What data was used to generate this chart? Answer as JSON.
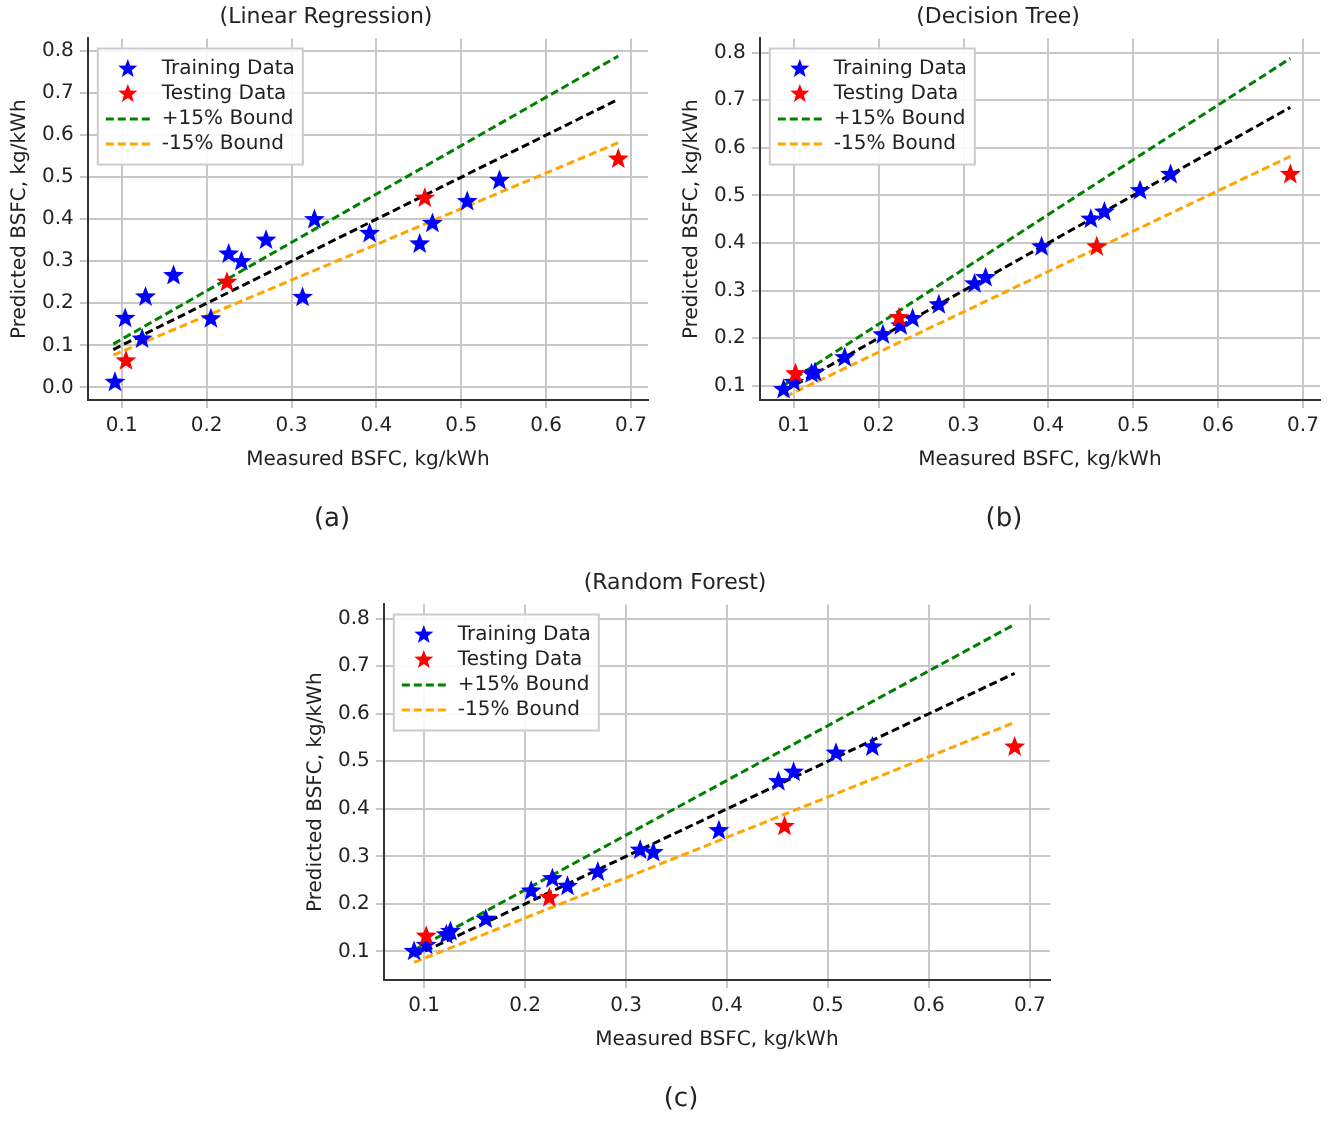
{
  "chart_data": [
    {
      "type": "scatter",
      "title": "(Linear Regression)",
      "xlabel": "Measured BSFC, kg/kWh",
      "ylabel": "Predicted BSFC, kg/kWh",
      "annotations": [
        "(a)"
      ],
      "xlim": [
        0.06,
        0.72
      ],
      "ylim": [
        -0.03,
        0.83
      ],
      "xticks": [
        0.1,
        0.2,
        0.3,
        0.4,
        0.5,
        0.6,
        0.7
      ],
      "yticks": [
        {
          "value": 0,
          "label": "0.0"
        },
        0.1,
        0.2,
        0.3,
        0.4,
        0.5,
        0.6,
        0.7,
        0.8
      ],
      "grid": true,
      "legend": "top left",
      "series": [
        {
          "type": "scatter",
          "name": "Training Data",
          "color": "#0000ff",
          "marker": "star",
          "x": [
            0.092,
            0.104,
            0.124,
            0.128,
            0.161,
            0.205,
            0.226,
            0.241,
            0.27,
            0.313,
            0.327,
            0.392,
            0.451,
            0.466,
            0.507,
            0.545
          ],
          "values": [
            0.012,
            0.164,
            0.115,
            0.215,
            0.266,
            0.163,
            0.317,
            0.299,
            0.35,
            0.214,
            0.399,
            0.366,
            0.341,
            0.39,
            0.442,
            0.492
          ]
        },
        {
          "type": "scatter",
          "name": "Testing Data",
          "color": "#ff0000",
          "marker": "star",
          "x": [
            0.105,
            0.224,
            0.457,
            0.685
          ],
          "values": [
            0.063,
            0.25,
            0.45,
            0.543
          ]
        },
        {
          "type": "line",
          "name": "+15% Bound",
          "color": "#008000",
          "marker": "none",
          "line_style": "dashed",
          "x": [
            0.09,
            0.685
          ],
          "values": [
            0.103,
            0.788
          ]
        },
        {
          "type": "line",
          "name": "-15% Bound",
          "color": "#ffa500",
          "marker": "none",
          "line_style": "dashed",
          "x": [
            0.09,
            0.685
          ],
          "values": [
            0.077,
            0.582
          ]
        },
        {
          "type": "line",
          "color": "#000000",
          "marker": "none",
          "line_style": "dashed",
          "x": [
            0.09,
            0.685
          ],
          "values": [
            0.09,
            0.685
          ]
        }
      ]
    },
    {
      "type": "scatter",
      "title": "(Decision Tree)",
      "xlabel": "Measured BSFC, kg/kWh",
      "ylabel": "Predicted BSFC, kg/kWh",
      "annotations": [
        "(b)"
      ],
      "xlim": [
        0.06,
        0.72
      ],
      "ylim": [
        0.07,
        0.83
      ],
      "xticks": [
        0.1,
        0.2,
        0.3,
        0.4,
        0.5,
        0.6,
        0.7
      ],
      "yticks": [
        0.1,
        0.2,
        0.3,
        0.4,
        0.5,
        0.6,
        0.7,
        0.8
      ],
      "grid": true,
      "legend": "top left",
      "series": [
        {
          "type": "scatter",
          "name": "Training Data",
          "color": "#0000ff",
          "marker": "star",
          "x": [
            0.088,
            0.1,
            0.121,
            0.125,
            0.16,
            0.205,
            0.226,
            0.24,
            0.271,
            0.313,
            0.326,
            0.392,
            0.45,
            0.466,
            0.508,
            0.544
          ],
          "values": [
            0.092,
            0.107,
            0.125,
            0.128,
            0.159,
            0.207,
            0.226,
            0.241,
            0.27,
            0.314,
            0.327,
            0.392,
            0.45,
            0.465,
            0.51,
            0.544
          ]
        },
        {
          "type": "scatter",
          "name": "Testing Data",
          "color": "#ff0000",
          "marker": "star",
          "x": [
            0.102,
            0.224,
            0.457,
            0.685
          ],
          "values": [
            0.125,
            0.243,
            0.392,
            0.544
          ]
        },
        {
          "type": "line",
          "name": "+15% Bound",
          "color": "#008000",
          "marker": "none",
          "line_style": "dashed",
          "x": [
            0.09,
            0.685
          ],
          "values": [
            0.103,
            0.788
          ]
        },
        {
          "type": "line",
          "name": "-15% Bound",
          "color": "#ffa500",
          "marker": "none",
          "line_style": "dashed",
          "x": [
            0.09,
            0.685
          ],
          "values": [
            0.077,
            0.582
          ]
        },
        {
          "type": "line",
          "color": "#000000",
          "marker": "none",
          "line_style": "dashed",
          "x": [
            0.09,
            0.685
          ],
          "values": [
            0.09,
            0.685
          ]
        }
      ]
    },
    {
      "type": "scatter",
      "title": "(Random Forest)",
      "xlabel": "Measured BSFC, kg/kWh",
      "ylabel": "Predicted BSFC, kg/kWh",
      "annotations": [
        "(c)"
      ],
      "xlim": [
        0.06,
        0.72
      ],
      "ylim": [
        0.04,
        0.83
      ],
      "xticks": [
        0.1,
        0.2,
        0.3,
        0.4,
        0.5,
        0.6,
        0.7
      ],
      "yticks": [
        0.1,
        0.2,
        0.3,
        0.4,
        0.5,
        0.6,
        0.7,
        0.8
      ],
      "grid": true,
      "legend": "top left",
      "series": [
        {
          "type": "scatter",
          "name": "Training Data",
          "color": "#0000ff",
          "marker": "star",
          "x": [
            0.09,
            0.102,
            0.122,
            0.126,
            0.161,
            0.206,
            0.227,
            0.242,
            0.272,
            0.314,
            0.327,
            0.392,
            0.451,
            0.466,
            0.508,
            0.544
          ],
          "values": [
            0.1,
            0.113,
            0.135,
            0.142,
            0.168,
            0.227,
            0.253,
            0.237,
            0.267,
            0.313,
            0.308,
            0.354,
            0.457,
            0.477,
            0.517,
            0.53
          ]
        },
        {
          "type": "scatter",
          "name": "Testing Data",
          "color": "#ff0000",
          "marker": "star",
          "x": [
            0.102,
            0.224,
            0.457,
            0.685
          ],
          "values": [
            0.132,
            0.213,
            0.363,
            0.53
          ]
        },
        {
          "type": "line",
          "name": "+15% Bound",
          "color": "#008000",
          "marker": "none",
          "line_style": "dashed",
          "x": [
            0.09,
            0.685
          ],
          "values": [
            0.103,
            0.788
          ]
        },
        {
          "type": "line",
          "name": "-15% Bound",
          "color": "#ffa500",
          "marker": "none",
          "line_style": "dashed",
          "x": [
            0.09,
            0.685
          ],
          "values": [
            0.077,
            0.582
          ]
        },
        {
          "type": "line",
          "color": "#000000",
          "marker": "none",
          "line_style": "dashed",
          "x": [
            0.09,
            0.685
          ],
          "values": [
            0.09,
            0.685
          ]
        }
      ]
    }
  ]
}
